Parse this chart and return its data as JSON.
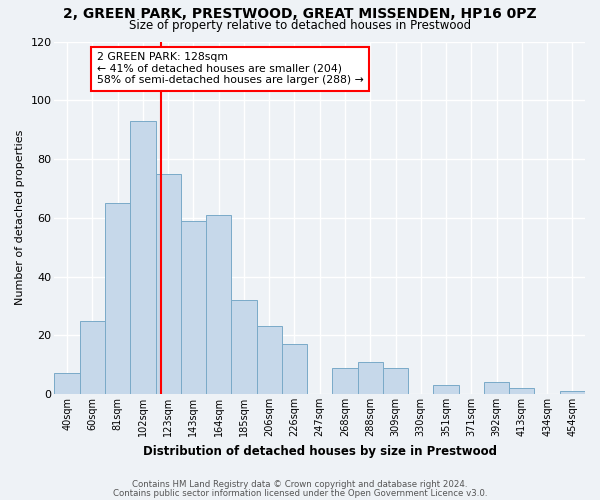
{
  "title": "2, GREEN PARK, PRESTWOOD, GREAT MISSENDEN, HP16 0PZ",
  "subtitle": "Size of property relative to detached houses in Prestwood",
  "xlabel": "Distribution of detached houses by size in Prestwood",
  "ylabel": "Number of detached properties",
  "bar_color": "#c6d8ea",
  "bar_edge_color": "#7aaac8",
  "bg_color": "#eef2f6",
  "grid_color": "white",
  "categories": [
    "40sqm",
    "60sqm",
    "81sqm",
    "102sqm",
    "123sqm",
    "143sqm",
    "164sqm",
    "185sqm",
    "206sqm",
    "226sqm",
    "247sqm",
    "268sqm",
    "288sqm",
    "309sqm",
    "330sqm",
    "351sqm",
    "371sqm",
    "392sqm",
    "413sqm",
    "434sqm",
    "454sqm"
  ],
  "values": [
    7,
    25,
    65,
    93,
    75,
    59,
    61,
    32,
    23,
    17,
    0,
    9,
    11,
    9,
    0,
    3,
    0,
    4,
    2,
    0,
    1
  ],
  "vline_index": 3.7,
  "vline_color": "red",
  "annotation_line1": "2 GREEN PARK: 128sqm",
  "annotation_line2": "← 41% of detached houses are smaller (204)",
  "annotation_line3": "58% of semi-detached houses are larger (288) →",
  "annotation_box_color": "white",
  "annotation_box_edge": "red",
  "ylim": [
    0,
    120
  ],
  "yticks": [
    0,
    20,
    40,
    60,
    80,
    100,
    120
  ],
  "footer1": "Contains HM Land Registry data © Crown copyright and database right 2024.",
  "footer2": "Contains public sector information licensed under the Open Government Licence v3.0."
}
